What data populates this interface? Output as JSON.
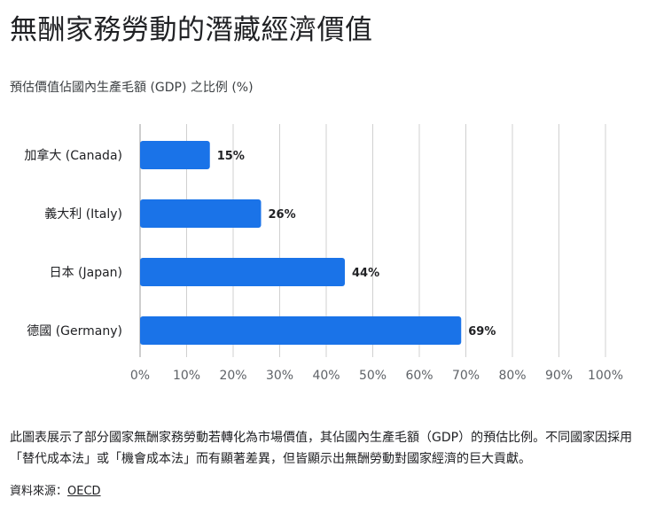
{
  "page": {
    "title": "無酬家務勞動的潛藏經濟價值",
    "description": "此圖表展示了部分國家無酬家務勞動若轉化為市場價值，其佔國內生產毛額（GDP）的預估比例。不同國家因採用「替代成本法」或「機會成本法」而有顯著差異，但皆顯示出無酬勞動對國家經濟的巨大貢獻。",
    "source_label": "資料來源：",
    "source_link": "OECD"
  },
  "chart_data": {
    "type": "bar",
    "orientation": "horizontal",
    "title": "預估價值佔國內生產毛額 (GDP) 之比例 (%)",
    "categories": [
      "加拿大 (Canada)",
      "義大利 (Italy)",
      "日本 (Japan)",
      "德國 (Germany)"
    ],
    "values": [
      15,
      26,
      44,
      69
    ],
    "value_labels": [
      "15%",
      "26%",
      "44%",
      "69%"
    ],
    "xlim": [
      0,
      100
    ],
    "xticks": [
      0,
      10,
      20,
      30,
      40,
      50,
      60,
      70,
      80,
      90,
      100
    ],
    "xtick_labels": [
      "0%",
      "10%",
      "20%",
      "30%",
      "40%",
      "50%",
      "60%",
      "70%",
      "80%",
      "90%",
      "100%"
    ],
    "grid": true,
    "bar_color": "#1a73e8",
    "grid_color": "#d0d0d0"
  }
}
